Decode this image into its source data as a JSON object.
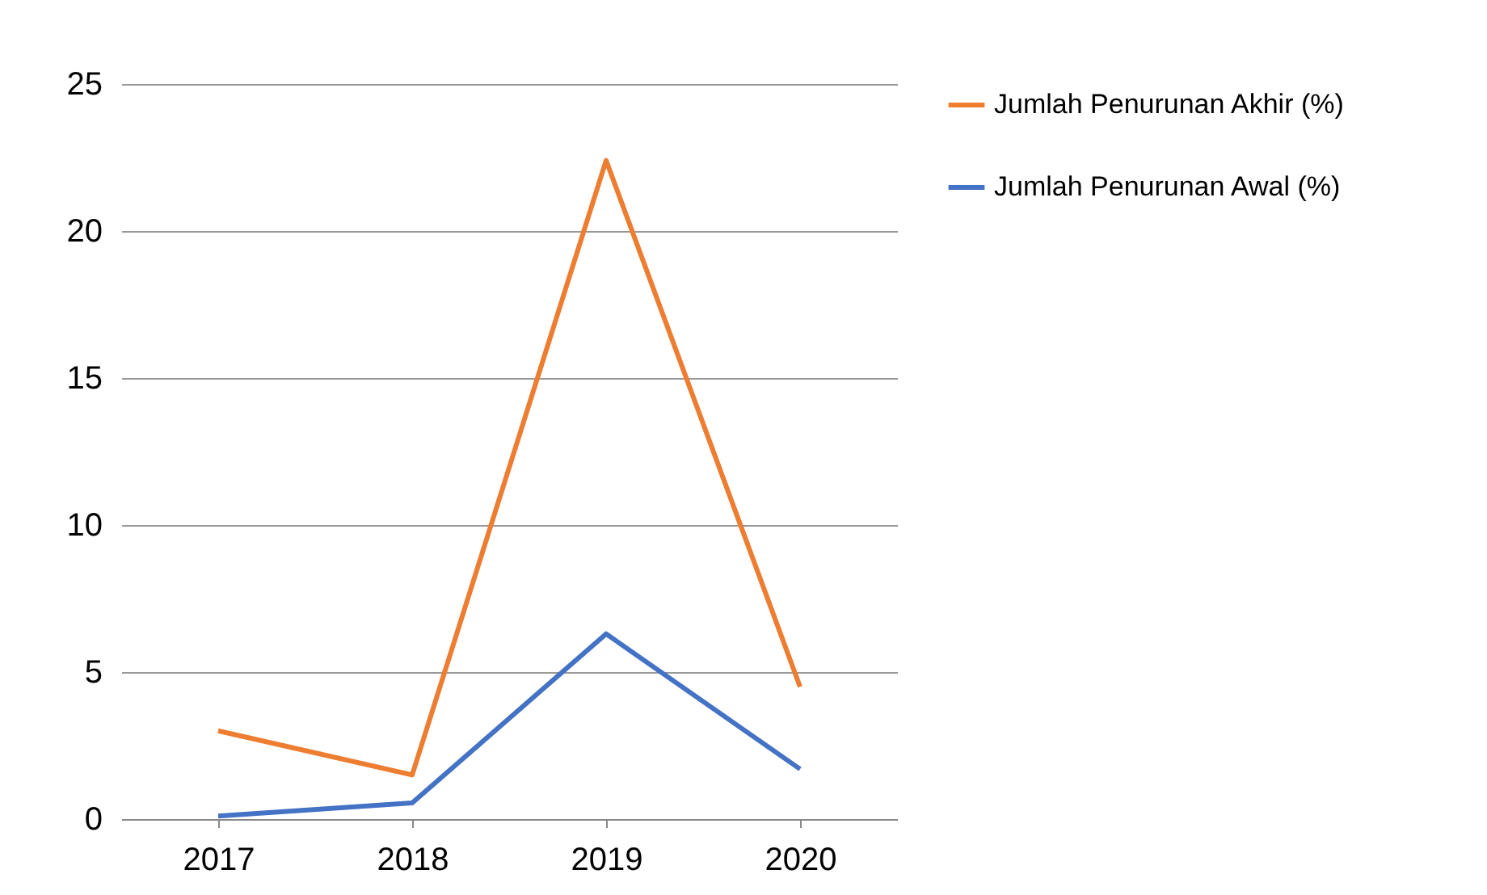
{
  "chart_data": {
    "type": "line",
    "categories": [
      "2017",
      "2018",
      "2019",
      "2020"
    ],
    "series": [
      {
        "name": "Jumlah Penurunan Akhir (%)",
        "color": "#ed7d31",
        "values": [
          3.0,
          1.5,
          22.4,
          4.5
        ]
      },
      {
        "name": "Jumlah Penurunan Awal (%)",
        "color": "#4472c4",
        "values": [
          0.1,
          0.55,
          6.3,
          1.7
        ]
      }
    ],
    "ylim": [
      0,
      25
    ],
    "yticks": [
      0,
      5,
      10,
      15,
      20,
      25
    ],
    "grid": "y",
    "legend": "right",
    "marker": "none",
    "line_style": "solid"
  }
}
